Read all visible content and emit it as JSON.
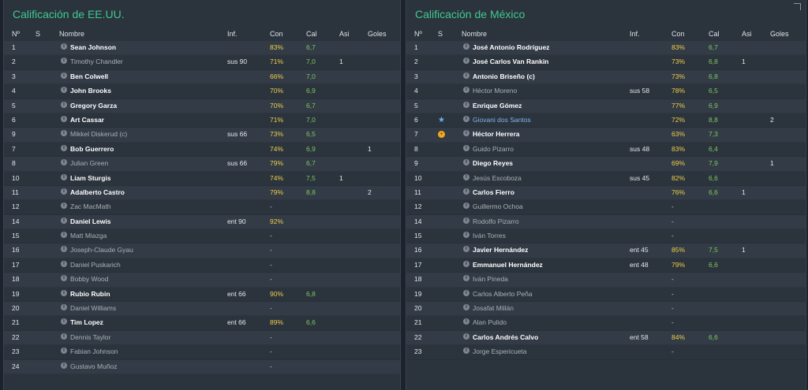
{
  "colors": {
    "title": "#3fc98f",
    "con_yellow": "#f0cf4a",
    "cal_green": "#7ec85e",
    "special_name": "#7fb6e8"
  },
  "headers": {
    "no": "Nº",
    "s": "S",
    "name": "Nombre",
    "inf": "Inf.",
    "con": "Con",
    "cal": "Cal",
    "asi": "Asi",
    "goles": "Goles"
  },
  "usa": {
    "title": "Calificación de EE.UU.",
    "players": [
      {
        "no": "1",
        "name": "Sean Johnson",
        "inf": "",
        "con": "83%",
        "cal": "6,7",
        "asi": "",
        "goles": "",
        "style": "starter",
        "icon": ""
      },
      {
        "no": "2",
        "name": "Timothy Chandler",
        "inf": "sus 90",
        "con": "71%",
        "cal": "7,0",
        "asi": "1",
        "goles": "",
        "style": "unused",
        "icon": ""
      },
      {
        "no": "3",
        "name": "Ben Colwell",
        "inf": "",
        "con": "66%",
        "cal": "7,0",
        "asi": "",
        "goles": "",
        "style": "starter",
        "icon": ""
      },
      {
        "no": "4",
        "name": "John Brooks",
        "inf": "",
        "con": "70%",
        "cal": "6,9",
        "asi": "",
        "goles": "",
        "style": "starter",
        "icon": ""
      },
      {
        "no": "5",
        "name": "Gregory Garza",
        "inf": "",
        "con": "70%",
        "cal": "6,7",
        "asi": "",
        "goles": "",
        "style": "starter",
        "icon": ""
      },
      {
        "no": "6",
        "name": "Art Cassar",
        "inf": "",
        "con": "71%",
        "cal": "7,0",
        "asi": "",
        "goles": "",
        "style": "starter",
        "icon": ""
      },
      {
        "no": "9",
        "name": "Mikkel Diskerud (c)",
        "inf": "sus 66",
        "con": "73%",
        "cal": "6,5",
        "asi": "",
        "goles": "",
        "style": "unused",
        "icon": ""
      },
      {
        "no": "7",
        "name": "Bob Guerrero",
        "inf": "",
        "con": "74%",
        "cal": "6,9",
        "asi": "",
        "goles": "1",
        "style": "starter",
        "icon": ""
      },
      {
        "no": "8",
        "name": "Julian Green",
        "inf": "sus 66",
        "con": "79%",
        "cal": "6,7",
        "asi": "",
        "goles": "",
        "style": "unused",
        "icon": ""
      },
      {
        "no": "10",
        "name": "Liam Sturgis",
        "inf": "",
        "con": "74%",
        "cal": "7,5",
        "asi": "1",
        "goles": "",
        "style": "starter",
        "icon": ""
      },
      {
        "no": "11",
        "name": "Adalberto Castro",
        "inf": "",
        "con": "79%",
        "cal": "8,8",
        "asi": "",
        "goles": "2",
        "style": "starter",
        "icon": ""
      },
      {
        "no": "12",
        "name": "Zac MacMath",
        "inf": "",
        "con": "-",
        "cal": "",
        "asi": "",
        "goles": "",
        "style": "unused",
        "icon": ""
      },
      {
        "no": "14",
        "name": "Daniel Lewis",
        "inf": "ent 90",
        "con": "92%",
        "cal": "",
        "asi": "",
        "goles": "",
        "style": "starter",
        "icon": ""
      },
      {
        "no": "15",
        "name": "Matt Miazga",
        "inf": "",
        "con": "-",
        "cal": "",
        "asi": "",
        "goles": "",
        "style": "unused",
        "icon": ""
      },
      {
        "no": "16",
        "name": "Joseph-Claude Gyau",
        "inf": "",
        "con": "-",
        "cal": "",
        "asi": "",
        "goles": "",
        "style": "unused",
        "icon": ""
      },
      {
        "no": "17",
        "name": "Daniel Puskarich",
        "inf": "",
        "con": "-",
        "cal": "",
        "asi": "",
        "goles": "",
        "style": "unused",
        "icon": ""
      },
      {
        "no": "18",
        "name": "Bobby Wood",
        "inf": "",
        "con": "-",
        "cal": "",
        "asi": "",
        "goles": "",
        "style": "unused",
        "icon": ""
      },
      {
        "no": "19",
        "name": "Rubio Rubin",
        "inf": "ent 66",
        "con": "90%",
        "cal": "6,8",
        "asi": "",
        "goles": "",
        "style": "starter",
        "icon": ""
      },
      {
        "no": "20",
        "name": "Daniel Williams",
        "inf": "",
        "con": "-",
        "cal": "",
        "asi": "",
        "goles": "",
        "style": "unused",
        "icon": ""
      },
      {
        "no": "21",
        "name": "Tim Lopez",
        "inf": "ent 66",
        "con": "89%",
        "cal": "6,6",
        "asi": "",
        "goles": "",
        "style": "starter",
        "icon": ""
      },
      {
        "no": "22",
        "name": "Dennis Taylor",
        "inf": "",
        "con": "-",
        "cal": "",
        "asi": "",
        "goles": "",
        "style": "unused",
        "icon": ""
      },
      {
        "no": "23",
        "name": "Fabian Johnson",
        "inf": "",
        "con": "-",
        "cal": "",
        "asi": "",
        "goles": "",
        "style": "unused",
        "icon": ""
      },
      {
        "no": "24",
        "name": "Gustavo Muñoz",
        "inf": "",
        "con": "-",
        "cal": "",
        "asi": "",
        "goles": "",
        "style": "unused",
        "icon": ""
      }
    ]
  },
  "mexico": {
    "title": "Calificación de México",
    "players": [
      {
        "no": "1",
        "name": "José Antonio Rodríguez",
        "inf": "",
        "con": "83%",
        "cal": "6,7",
        "asi": "",
        "goles": "",
        "style": "starter",
        "icon": ""
      },
      {
        "no": "2",
        "name": "José Carlos Van Rankin",
        "inf": "",
        "con": "73%",
        "cal": "6,8",
        "asi": "1",
        "goles": "",
        "style": "starter",
        "icon": ""
      },
      {
        "no": "3",
        "name": "Antonio Briseño (c)",
        "inf": "",
        "con": "73%",
        "cal": "6,8",
        "asi": "",
        "goles": "",
        "style": "starter",
        "icon": ""
      },
      {
        "no": "4",
        "name": "Héctor Moreno",
        "inf": "sus 58",
        "con": "78%",
        "cal": "6,5",
        "asi": "",
        "goles": "",
        "style": "unused",
        "icon": ""
      },
      {
        "no": "5",
        "name": "Enrique Gómez",
        "inf": "",
        "con": "77%",
        "cal": "6,9",
        "asi": "",
        "goles": "",
        "style": "starter",
        "icon": ""
      },
      {
        "no": "6",
        "name": "Giovani dos Santos",
        "inf": "",
        "con": "72%",
        "cal": "8,8",
        "asi": "",
        "goles": "2",
        "style": "special",
        "icon": "star"
      },
      {
        "no": "7",
        "name": "Héctor Herrera",
        "inf": "",
        "con": "63%",
        "cal": "7,3",
        "asi": "",
        "goles": "",
        "style": "starter",
        "icon": "medal"
      },
      {
        "no": "8",
        "name": "Guido Pizarro",
        "inf": "sus 48",
        "con": "83%",
        "cal": "6,4",
        "asi": "",
        "goles": "",
        "style": "unused",
        "icon": ""
      },
      {
        "no": "9",
        "name": "Diego Reyes",
        "inf": "",
        "con": "69%",
        "cal": "7,9",
        "asi": "",
        "goles": "1",
        "style": "starter",
        "icon": ""
      },
      {
        "no": "10",
        "name": "Jesús Escoboza",
        "inf": "sus 45",
        "con": "82%",
        "cal": "6,6",
        "asi": "",
        "goles": "",
        "style": "unused",
        "icon": ""
      },
      {
        "no": "11",
        "name": "Carlos Fierro",
        "inf": "",
        "con": "76%",
        "cal": "6,6",
        "asi": "1",
        "goles": "",
        "style": "starter",
        "icon": ""
      },
      {
        "no": "12",
        "name": "Guillermo Ochoa",
        "inf": "",
        "con": "-",
        "cal": "",
        "asi": "",
        "goles": "",
        "style": "unused",
        "icon": ""
      },
      {
        "no": "14",
        "name": "Rodolfo Pizarro",
        "inf": "",
        "con": "-",
        "cal": "",
        "asi": "",
        "goles": "",
        "style": "unused",
        "icon": ""
      },
      {
        "no": "15",
        "name": "Iván Torres",
        "inf": "",
        "con": "-",
        "cal": "",
        "asi": "",
        "goles": "",
        "style": "unused",
        "icon": ""
      },
      {
        "no": "16",
        "name": "Javier Hernández",
        "inf": "ent 45",
        "con": "85%",
        "cal": "7,5",
        "asi": "1",
        "goles": "",
        "style": "starter",
        "icon": ""
      },
      {
        "no": "17",
        "name": "Emmanuel Hernández",
        "inf": "ent 48",
        "con": "79%",
        "cal": "6,6",
        "asi": "",
        "goles": "",
        "style": "starter",
        "icon": ""
      },
      {
        "no": "18",
        "name": "Iván Pineda",
        "inf": "",
        "con": "-",
        "cal": "",
        "asi": "",
        "goles": "",
        "style": "unused",
        "icon": ""
      },
      {
        "no": "19",
        "name": "Carlos Alberto Peña",
        "inf": "",
        "con": "-",
        "cal": "",
        "asi": "",
        "goles": "",
        "style": "unused",
        "icon": ""
      },
      {
        "no": "20",
        "name": "Josafat Millán",
        "inf": "",
        "con": "-",
        "cal": "",
        "asi": "",
        "goles": "",
        "style": "unused",
        "icon": ""
      },
      {
        "no": "21",
        "name": "Alan Pulido",
        "inf": "",
        "con": "-",
        "cal": "",
        "asi": "",
        "goles": "",
        "style": "unused",
        "icon": ""
      },
      {
        "no": "22",
        "name": "Carlos Andrés Calvo",
        "inf": "ent 58",
        "con": "84%",
        "cal": "6,6",
        "asi": "",
        "goles": "",
        "style": "starter",
        "icon": ""
      },
      {
        "no": "23",
        "name": "Jorge Espericueta",
        "inf": "",
        "con": "-",
        "cal": "",
        "asi": "",
        "goles": "",
        "style": "unused",
        "icon": ""
      }
    ]
  }
}
